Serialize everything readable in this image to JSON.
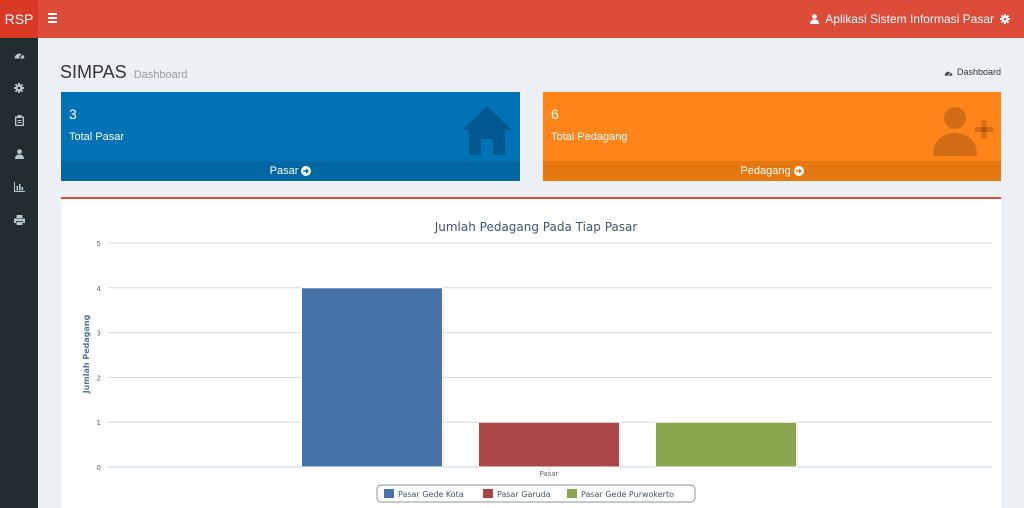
{
  "header": {
    "logo": "RSP",
    "app_title": "Aplikasi Sistem Informasi Pasar"
  },
  "sidebar": {
    "items": [
      {
        "icon": "dashboard-icon"
      },
      {
        "icon": "gear-icon"
      },
      {
        "icon": "clipboard-icon"
      },
      {
        "icon": "user-icon"
      },
      {
        "icon": "bar-chart-icon"
      },
      {
        "icon": "print-icon"
      }
    ]
  },
  "page": {
    "title": "SIMPAS",
    "subtitle": "Dashboard",
    "breadcrumb": "Dashboard"
  },
  "boxes": {
    "pasar": {
      "count": "3",
      "label": "Total Pasar",
      "link": "Pasar",
      "color": "#0073b7"
    },
    "pedagang": {
      "count": "6",
      "label": "Total Pedagang",
      "link": "Pedagang",
      "color": "#ff851b"
    }
  },
  "chart_data": {
    "type": "bar",
    "title": "Jumlah Pedagang Pada Tiap Pasar",
    "xlabel": "Pasar",
    "ylabel": "Jumlah Pedagang",
    "ylim": [
      0,
      5
    ],
    "yticks": [
      "0",
      "1",
      "2",
      "3",
      "4",
      "5"
    ],
    "categories": [
      "Pasar"
    ],
    "series": [
      {
        "name": "Pasar Gede Kota",
        "values": [
          4
        ],
        "color": "#4572a7"
      },
      {
        "name": "Pasar Garuda",
        "values": [
          1
        ],
        "color": "#aa4643"
      },
      {
        "name": "Pasar Gede Purwokerto",
        "values": [
          1
        ],
        "color": "#89a54e"
      }
    ]
  }
}
